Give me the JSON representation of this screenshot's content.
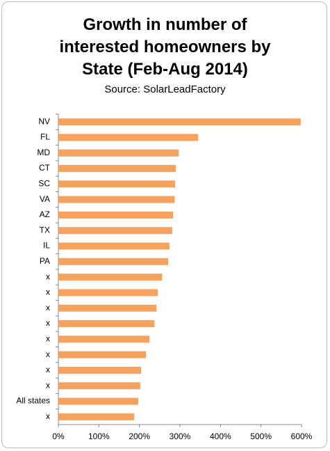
{
  "chart_data": {
    "type": "hbar",
    "title": "Growth in number of interested homeowners by State (Feb-Aug 2014)",
    "subtitle": "Source: SolarLeadFactory",
    "categories": [
      "NV",
      "FL",
      "MD",
      "CT",
      "SC",
      "VA",
      "AZ",
      "TX",
      "IL",
      "PA",
      "x",
      "x",
      "x",
      "x",
      "x",
      "x",
      "x",
      "x",
      "All states",
      "x"
    ],
    "values": [
      598,
      345,
      297,
      290,
      288,
      287,
      283,
      281,
      274,
      271,
      256,
      245,
      242,
      237,
      225,
      216,
      204,
      202,
      197,
      187
    ],
    "color": "#f6a25f",
    "xlim": [
      0,
      600
    ],
    "xticks": [
      {
        "value": 0,
        "label": "0%"
      },
      {
        "value": 100,
        "label": "100%"
      },
      {
        "value": 200,
        "label": "200%"
      },
      {
        "value": 300,
        "label": "300%"
      },
      {
        "value": 400,
        "label": "400%"
      },
      {
        "value": 500,
        "label": "500%"
      },
      {
        "value": 600,
        "label": "600%"
      }
    ],
    "grid": false
  }
}
